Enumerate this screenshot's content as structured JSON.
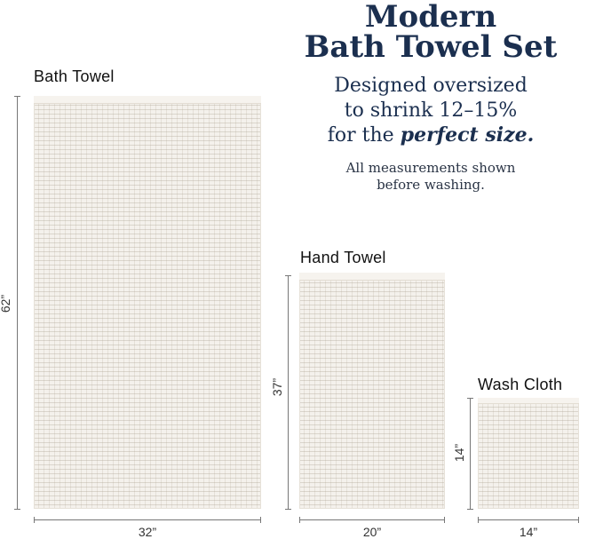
{
  "header": {
    "title_line1": "Modern",
    "title_line2": "Bath Towel Set",
    "subtitle_line1": "Designed oversized",
    "subtitle_line2": "to shrink 12–15%",
    "subtitle_line3_prefix": "for the ",
    "subtitle_line3_emphasis": "perfect size.",
    "note_line1": "All measurements shown",
    "note_line2": "before washing."
  },
  "towels": [
    {
      "label": "Bath Towel",
      "width": "32”",
      "height": "62”"
    },
    {
      "label": "Hand Towel",
      "width": "20”",
      "height": "37”"
    },
    {
      "label": "Wash Cloth",
      "width": "14”",
      "height": "14”"
    }
  ],
  "colors": {
    "title": "#1b2f4f",
    "towel": "#f4f1ec",
    "dimension_line": "#777777"
  }
}
